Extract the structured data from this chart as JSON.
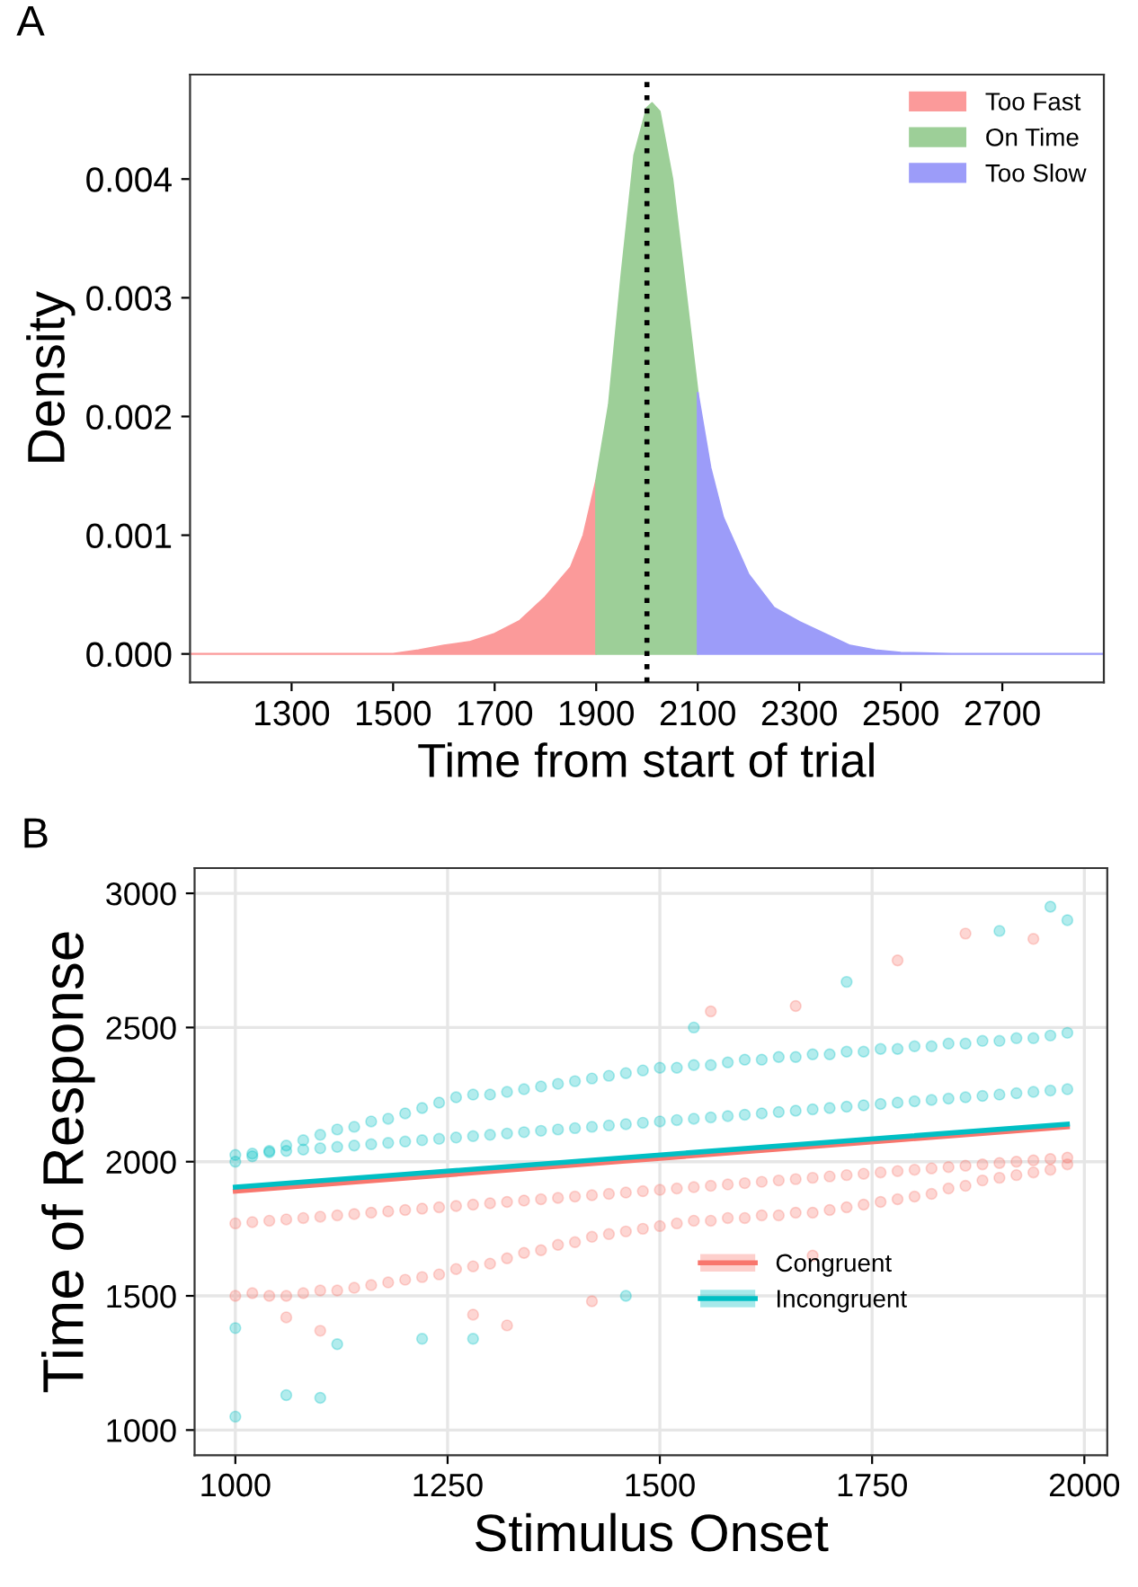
{
  "chart_data": [
    {
      "type": "area",
      "title": "A",
      "xlabel": "Time from start of trial",
      "ylabel": "Density",
      "xlim": [
        1100,
        2900
      ],
      "ylim": [
        -0.00024,
        0.00488
      ],
      "xticks": [
        1300,
        1500,
        1700,
        1900,
        2100,
        2300,
        2500,
        2700
      ],
      "yticks": [
        {
          "value": 0,
          "label": "0.000"
        },
        0.001,
        0.002,
        0.003,
        0.004
      ],
      "grid": false,
      "legend": "top right",
      "ref_lines": [
        {
          "axis": "x",
          "value": 2000,
          "label": null,
          "color": "#000000",
          "line_style": "dotted"
        }
      ],
      "series": [
        {
          "name": "Too Fast",
          "color": "#fb9a9a",
          "x": [
            1100,
            1300,
            1450,
            1500,
            1550,
            1600,
            1650,
            1700,
            1750,
            1800,
            1850,
            1875,
            1900
          ],
          "values": [
            0,
            0,
            0,
            0,
            3e-05,
            7e-05,
            0.0001,
            0.00017,
            0.00028,
            0.00048,
            0.00073,
            0.001,
            0.00146
          ]
        },
        {
          "name": "On Time",
          "color": "#9dcf98",
          "x": [
            1900,
            1925,
            1950,
            1975,
            2000,
            2010,
            2025,
            2050,
            2075,
            2100
          ],
          "values": [
            0.00146,
            0.0021,
            0.0032,
            0.0042,
            0.0046,
            0.00464,
            0.00457,
            0.004,
            0.0031,
            0.0022
          ]
        },
        {
          "name": "Too Slow",
          "color": "#9c9cf9",
          "x": [
            2100,
            2125,
            2150,
            2200,
            2250,
            2300,
            2350,
            2400,
            2450,
            2500,
            2600,
            2900
          ],
          "values": [
            0.0022,
            0.00157,
            0.00115,
            0.00067,
            0.00039,
            0.00027,
            0.00017,
            7e-05,
            3e-05,
            1e-05,
            0,
            0
          ]
        }
      ]
    },
    {
      "type": "scatter",
      "title": "B",
      "xlabel": "Stimulus Onset",
      "ylabel": "Time of Response",
      "xlim": [
        952,
        2027
      ],
      "ylim": [
        906,
        3094
      ],
      "xticks": [
        1000,
        1250,
        1500,
        1750,
        2000
      ],
      "yticks": [
        1000,
        1500,
        2000,
        2500,
        3000
      ],
      "grid": true,
      "legend": "bottom right",
      "series": [
        {
          "type": "scatter",
          "marker": "circle",
          "color": "#f8766d",
          "x": [
            1000,
            1020,
            1040,
            1060,
            1080,
            1100,
            1120,
            1140,
            1160,
            1180,
            1200,
            1220,
            1240,
            1260,
            1280,
            1300,
            1320,
            1340,
            1360,
            1380,
            1400,
            1420,
            1440,
            1460,
            1480,
            1500,
            1520,
            1540,
            1560,
            1580,
            1600,
            1620,
            1640,
            1660,
            1680,
            1700,
            1720,
            1740,
            1760,
            1780,
            1800,
            1820,
            1840,
            1860,
            1880,
            1900,
            1920,
            1940,
            1960,
            1980,
            1000,
            1020,
            1040,
            1060,
            1080,
            1100,
            1120,
            1140,
            1160,
            1180,
            1200,
            1220,
            1240,
            1260,
            1280,
            1300,
            1320,
            1340,
            1360,
            1380,
            1400,
            1420,
            1440,
            1460,
            1480,
            1500,
            1520,
            1540,
            1560,
            1580,
            1600,
            1620,
            1640,
            1660,
            1680,
            1700,
            1720,
            1740,
            1760,
            1780,
            1800,
            1820,
            1840,
            1860,
            1880,
            1900,
            1920,
            1940,
            1960,
            1980,
            1860,
            1940,
            1780,
            1660,
            1560,
            1100,
            1060,
            1280,
            1320,
            1420,
            1680
          ],
          "values": [
            1500,
            1510,
            1500,
            1500,
            1510,
            1520,
            1520,
            1530,
            1540,
            1550,
            1560,
            1570,
            1580,
            1600,
            1610,
            1620,
            1640,
            1660,
            1670,
            1690,
            1700,
            1720,
            1730,
            1740,
            1750,
            1760,
            1770,
            1780,
            1780,
            1790,
            1790,
            1800,
            1800,
            1810,
            1810,
            1820,
            1830,
            1840,
            1850,
            1860,
            1870,
            1880,
            1900,
            1910,
            1930,
            1940,
            1950,
            1960,
            1970,
            1990,
            1770,
            1775,
            1780,
            1785,
            1790,
            1795,
            1800,
            1805,
            1810,
            1815,
            1820,
            1825,
            1830,
            1835,
            1840,
            1845,
            1850,
            1855,
            1860,
            1865,
            1870,
            1875,
            1880,
            1885,
            1890,
            1895,
            1900,
            1905,
            1910,
            1915,
            1920,
            1925,
            1930,
            1935,
            1940,
            1945,
            1950,
            1955,
            1960,
            1965,
            1970,
            1975,
            1980,
            1985,
            1990,
            1995,
            2000,
            2005,
            2010,
            2015,
            2850,
            2830,
            2750,
            2580,
            2560,
            1370,
            1420,
            1430,
            1390,
            1480,
            1650
          ]
        },
        {
          "type": "scatter",
          "marker": "circle",
          "color": "#00bfc4",
          "x": [
            1000,
            1020,
            1040,
            1060,
            1080,
            1100,
            1120,
            1140,
            1160,
            1180,
            1200,
            1220,
            1240,
            1260,
            1280,
            1300,
            1320,
            1340,
            1360,
            1380,
            1400,
            1420,
            1440,
            1460,
            1480,
            1500,
            1520,
            1540,
            1560,
            1580,
            1600,
            1620,
            1640,
            1660,
            1680,
            1700,
            1720,
            1740,
            1760,
            1780,
            1800,
            1820,
            1840,
            1860,
            1880,
            1900,
            1920,
            1940,
            1960,
            1980,
            1000,
            1020,
            1040,
            1060,
            1080,
            1100,
            1120,
            1140,
            1160,
            1180,
            1200,
            1220,
            1240,
            1260,
            1280,
            1300,
            1320,
            1340,
            1360,
            1380,
            1400,
            1420,
            1440,
            1460,
            1480,
            1500,
            1520,
            1540,
            1560,
            1580,
            1600,
            1620,
            1640,
            1660,
            1680,
            1700,
            1720,
            1740,
            1760,
            1780,
            1800,
            1820,
            1840,
            1860,
            1880,
            1900,
            1920,
            1940,
            1960,
            1980,
            1000,
            1060,
            1100,
            1000,
            1120,
            1220,
            1280,
            1960,
            1900,
            1980,
            1720,
            1540,
            1460
          ],
          "values": [
            2000,
            2020,
            2040,
            2060,
            2080,
            2100,
            2120,
            2130,
            2150,
            2160,
            2180,
            2200,
            2220,
            2240,
            2250,
            2250,
            2260,
            2270,
            2280,
            2290,
            2300,
            2310,
            2320,
            2330,
            2340,
            2350,
            2350,
            2360,
            2360,
            2370,
            2380,
            2380,
            2390,
            2390,
            2400,
            2400,
            2410,
            2410,
            2420,
            2420,
            2430,
            2430,
            2440,
            2440,
            2450,
            2450,
            2460,
            2460,
            2470,
            2480,
            2025,
            2030,
            2035,
            2040,
            2045,
            2050,
            2055,
            2060,
            2065,
            2070,
            2075,
            2080,
            2085,
            2090,
            2095,
            2100,
            2105,
            2110,
            2115,
            2120,
            2125,
            2130,
            2135,
            2140,
            2145,
            2150,
            2155,
            2160,
            2165,
            2170,
            2175,
            2180,
            2185,
            2190,
            2195,
            2200,
            2205,
            2210,
            2215,
            2220,
            2225,
            2230,
            2235,
            2240,
            2245,
            2250,
            2255,
            2260,
            2265,
            2270,
            1050,
            1130,
            1120,
            1380,
            1320,
            1340,
            1340,
            2950,
            2860,
            2900,
            2670,
            2500,
            1500
          ]
        },
        {
          "type": "line",
          "marker": "none",
          "name": "Congruent",
          "color": "#f8766d",
          "x": [
            1000,
            1980
          ],
          "values": [
            1890,
            2130
          ]
        },
        {
          "type": "line",
          "marker": "none",
          "name": "Incongruent",
          "color": "#00bfc4",
          "x": [
            1000,
            1980
          ],
          "values": [
            1905,
            2140
          ]
        }
      ]
    }
  ]
}
